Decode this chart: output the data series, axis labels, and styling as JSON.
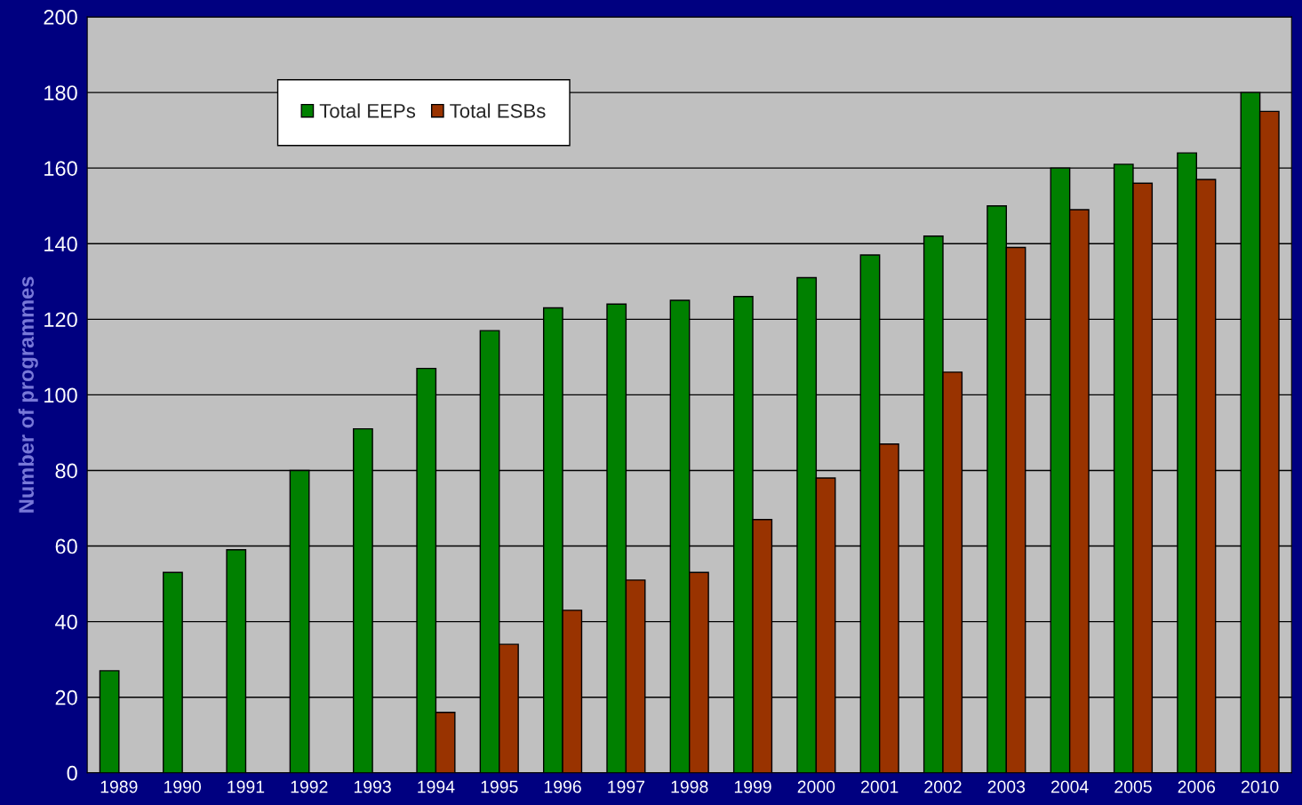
{
  "chart_data": {
    "type": "bar",
    "ylabel": "Number of programmes",
    "categories": [
      "1989",
      "1990",
      "1991",
      "1992",
      "1993",
      "1994",
      "1995",
      "1996",
      "1997",
      "1998",
      "1999",
      "2000",
      "2001",
      "2002",
      "2003",
      "2004",
      "2005",
      "2006",
      "2010"
    ],
    "series": [
      {
        "name": "Total EEPs",
        "color": "#008000",
        "values": [
          27,
          53,
          59,
          80,
          91,
          107,
          117,
          123,
          124,
          125,
          126,
          131,
          137,
          142,
          150,
          160,
          161,
          164,
          180
        ]
      },
      {
        "name": "Total ESBs",
        "color": "#993300",
        "values": [
          null,
          null,
          null,
          null,
          null,
          16,
          34,
          43,
          51,
          53,
          67,
          78,
          87,
          106,
          139,
          149,
          156,
          157,
          175
        ]
      }
    ],
    "ylim": [
      0,
      200
    ],
    "yticks": [
      0,
      20,
      40,
      60,
      80,
      100,
      120,
      140,
      160,
      180,
      200
    ],
    "grid": "y",
    "legend": "top left"
  }
}
